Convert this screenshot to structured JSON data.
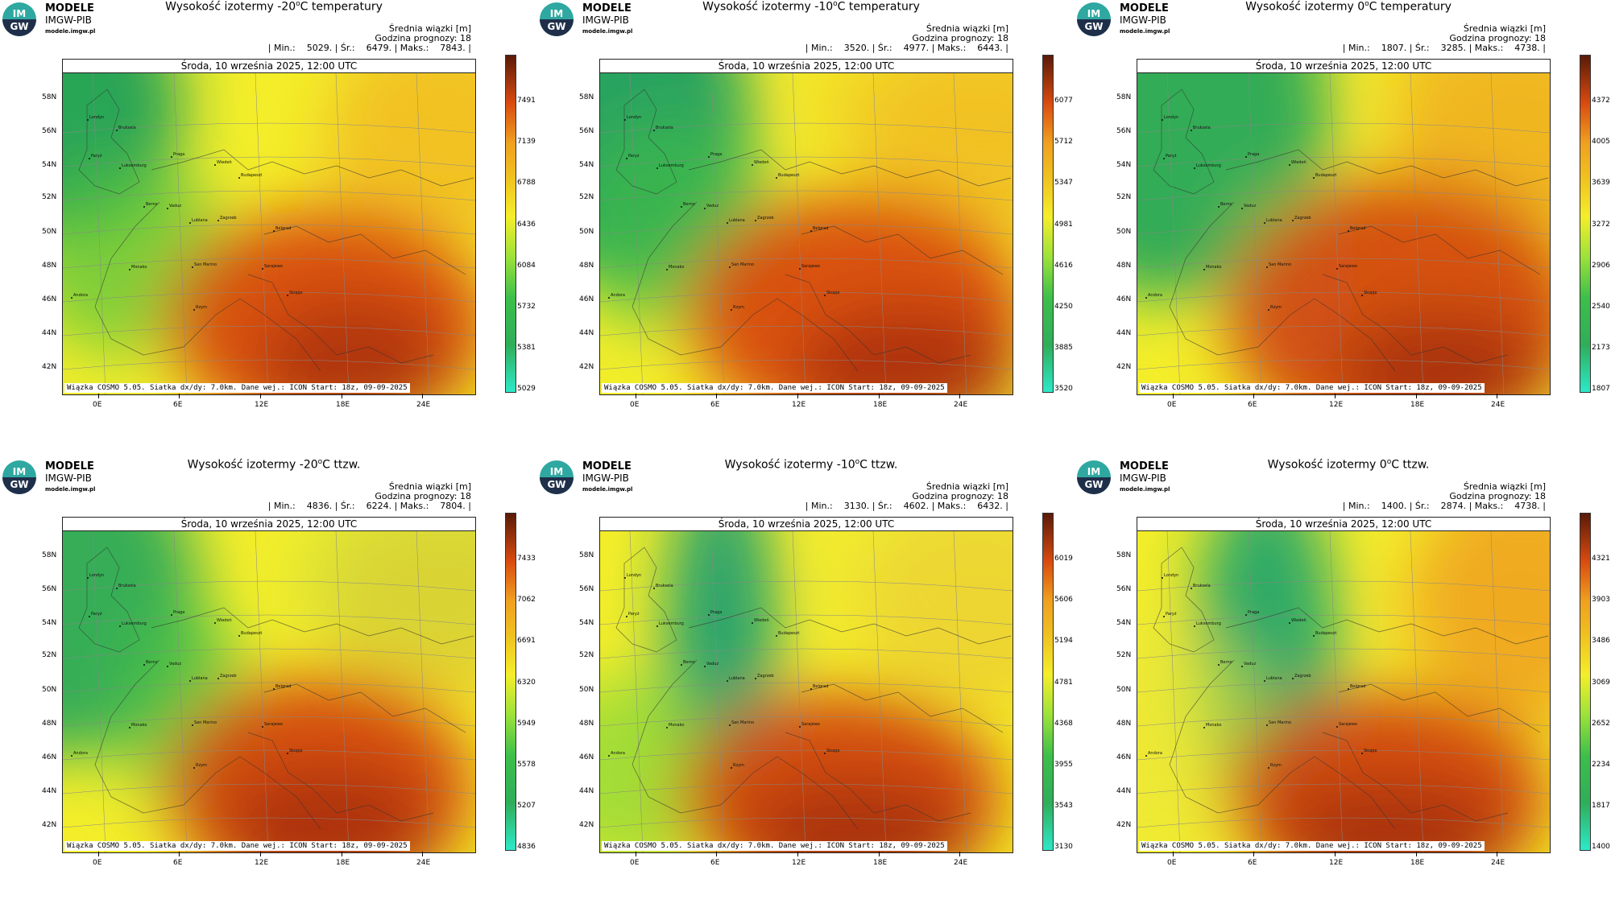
{
  "logo": {
    "line1": "MODELE",
    "line2": "IMGW-PIB",
    "line3": "modele.imgw.pl",
    "badge_top": "IM",
    "badge_bottom": "GW"
  },
  "common": {
    "header_label": "Średnia wiązki [m]",
    "forecast_hour": "Godzina prognozy: 18",
    "date": "Środa, 10 września 2025, 12:00 UTC",
    "footer": "Wiązka COSMO 5.05. Siatka dx/dy: 7.0km. Dane wej.: ICON Start: 18z, 09-09-2025",
    "lat_labels": [
      "58N",
      "56N",
      "54N",
      "52N",
      "50N",
      "48N",
      "46N",
      "44N",
      "42N"
    ],
    "lon_labels": [
      "0E",
      "6E",
      "12E",
      "18E",
      "24E"
    ],
    "cities": [
      "Londyn",
      "Bruksela",
      "Paryż",
      "Luksemburg",
      "Praga",
      "Wiedeń",
      "Budapeszt",
      "Berno",
      "Vaduz",
      "Zagrzeb",
      "Lublana",
      "Belgrad",
      "San Marino",
      "Monako",
      "Sarajewo",
      "Andora",
      "Rzym",
      "Skopje"
    ]
  },
  "panels": [
    {
      "title_pre": "Wysokość izotermy -20",
      "title_post": "C temperatury",
      "stats": "| Min.:    5029. | Śr.:    6479. | Maks.:    7843. |",
      "colorbar_ticks": [
        "7491",
        "7139",
        "6788",
        "6436",
        "6084",
        "5732",
        "5381",
        "5029"
      ]
    },
    {
      "title_pre": "Wysokość izotermy -10",
      "title_post": "C temperatury",
      "stats": "| Min.:    3520. | Śr.:    4977. | Maks.:    6443. |",
      "colorbar_ticks": [
        "6077",
        "5712",
        "5347",
        "4981",
        "4616",
        "4250",
        "3885",
        "3520"
      ]
    },
    {
      "title_pre": "Wysokość izotermy 0",
      "title_post": "C temperatury",
      "stats": "| Min.:    1807. | Śr.:    3285. | Maks.:    4738. |",
      "colorbar_ticks": [
        "4372",
        "4005",
        "3639",
        "3272",
        "2906",
        "2540",
        "2173",
        "1807"
      ]
    },
    {
      "title_pre": "Wysokość izotermy -20",
      "title_post": "C ttzw.",
      "stats": "| Min.:    4836. | Śr.:    6224. | Maks.:    7804. |",
      "colorbar_ticks": [
        "7433",
        "7062",
        "6691",
        "6320",
        "5949",
        "5578",
        "5207",
        "4836"
      ]
    },
    {
      "title_pre": "Wysokość izotermy -10",
      "title_post": "C ttzw.",
      "stats": "| Min.:    3130. | Śr.:    4602. | Maks.:    6432. |",
      "colorbar_ticks": [
        "6019",
        "5606",
        "5194",
        "4781",
        "4368",
        "3955",
        "3543",
        "3130"
      ]
    },
    {
      "title_pre": "Wysokość izotermy 0",
      "title_post": "C ttzw.",
      "stats": "| Min.:    1400. | Śr.:    2874. | Maks.:    4738. |",
      "colorbar_ticks": [
        "4321",
        "3903",
        "3486",
        "3069",
        "2652",
        "2234",
        "1817",
        "1400"
      ]
    }
  ],
  "colors": {
    "low": "#2ee8c8",
    "green": "#2fae5a",
    "lime": "#9be23a",
    "yellow": "#f4ee2a",
    "orange": "#f0a020",
    "red": "#d84a10",
    "dark": "#5a1a08"
  }
}
